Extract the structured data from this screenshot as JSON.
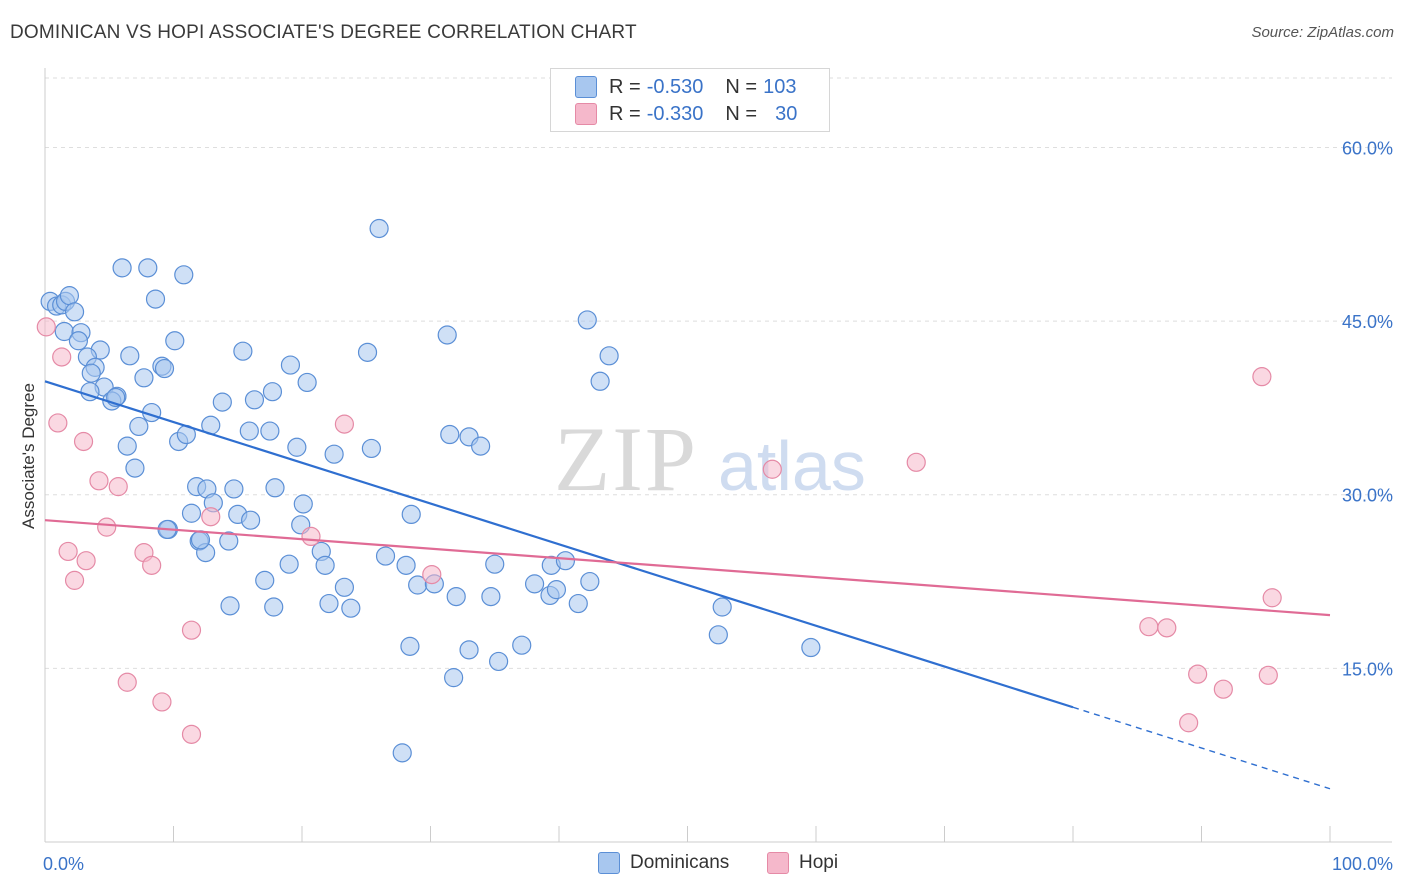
{
  "header": {
    "title": "DOMINICAN VS HOPI ASSOCIATE'S DEGREE CORRELATION CHART",
    "source": "Source: ZipAtlas.com"
  },
  "watermark": {
    "zip": "ZIP",
    "atlas": "atlas"
  },
  "legend_top": {
    "rows": [
      {
        "r_label": "R =",
        "r_value": "-0.530",
        "n_label": "N =",
        "n_value": "103",
        "color": "#a8c7ef"
      },
      {
        "r_label": "R =",
        "r_value": "-0.330",
        "n_label": "N =",
        "n_value": "30",
        "color": "#f5b8cb"
      }
    ]
  },
  "legend_bottom": {
    "items": [
      {
        "label": "Dominicans",
        "color": "#a8c7ef"
      },
      {
        "label": "Hopi",
        "color": "#f5b8cb"
      }
    ]
  },
  "colors": {
    "blue_fill": "#a8c7ef",
    "blue_stroke": "#5b8fd6",
    "blue_line": "#2f6fd0",
    "pink_fill": "#f5b8cb",
    "pink_stroke": "#e58aa6",
    "pink_line": "#e06b95",
    "tick_label": "#3a73c8",
    "grid": "#dedede"
  },
  "chart_data": {
    "type": "scatter",
    "title": "DOMINICAN VS HOPI ASSOCIATE'S DEGREE CORRELATION CHART",
    "xlabel": "",
    "ylabel": "Associate's Degree",
    "xlim": [
      0,
      100
    ],
    "ylim": [
      0,
      66
    ],
    "x_tick_labels": [
      "0.0%",
      "100.0%"
    ],
    "y_ticks": [
      15,
      30,
      45,
      60
    ],
    "y_tick_labels": [
      "15.0%",
      "30.0%",
      "45.0%",
      "60.0%"
    ],
    "grid": true,
    "series": [
      {
        "name": "Dominicans",
        "points": [
          [
            0.4,
            46.7
          ],
          [
            0.9,
            46.3
          ],
          [
            1.3,
            46.4
          ],
          [
            1.6,
            46.7
          ],
          [
            1.9,
            47.2
          ],
          [
            2.3,
            45.8
          ],
          [
            1.5,
            44.1
          ],
          [
            2.8,
            44.0
          ],
          [
            2.6,
            43.3
          ],
          [
            4.3,
            42.5
          ],
          [
            3.3,
            41.9
          ],
          [
            3.9,
            41.0
          ],
          [
            3.6,
            40.5
          ],
          [
            4.6,
            39.3
          ],
          [
            5.6,
            38.5
          ],
          [
            5.2,
            38.1
          ],
          [
            6.6,
            42.0
          ],
          [
            7.7,
            40.1
          ],
          [
            9.1,
            41.1
          ],
          [
            9.3,
            40.9
          ],
          [
            10.1,
            43.3
          ],
          [
            6.0,
            49.6
          ],
          [
            8.0,
            49.6
          ],
          [
            8.6,
            46.9
          ],
          [
            10.8,
            49.0
          ],
          [
            13.8,
            38.0
          ],
          [
            15.4,
            42.4
          ],
          [
            16.3,
            38.2
          ],
          [
            17.7,
            38.9
          ],
          [
            19.1,
            41.2
          ],
          [
            20.4,
            39.7
          ],
          [
            8.3,
            37.1
          ],
          [
            7.3,
            35.9
          ],
          [
            10.4,
            34.6
          ],
          [
            11.0,
            35.2
          ],
          [
            12.9,
            36.0
          ],
          [
            15.9,
            35.5
          ],
          [
            17.5,
            35.5
          ],
          [
            19.6,
            34.1
          ],
          [
            22.5,
            33.5
          ],
          [
            25.4,
            34.0
          ],
          [
            31.3,
            43.8
          ],
          [
            25.1,
            42.3
          ],
          [
            26.0,
            53.0
          ],
          [
            42.2,
            45.1
          ],
          [
            43.9,
            42.0
          ],
          [
            43.2,
            39.8
          ],
          [
            31.5,
            35.2
          ],
          [
            33.0,
            35.0
          ],
          [
            33.9,
            34.2
          ],
          [
            6.4,
            34.2
          ],
          [
            7.0,
            32.3
          ],
          [
            11.8,
            30.7
          ],
          [
            12.6,
            30.5
          ],
          [
            14.7,
            30.5
          ],
          [
            17.9,
            30.6
          ],
          [
            20.1,
            29.2
          ],
          [
            9.6,
            27.0
          ],
          [
            11.4,
            28.4
          ],
          [
            13.1,
            29.3
          ],
          [
            15.0,
            28.3
          ],
          [
            16.0,
            27.8
          ],
          [
            19.9,
            27.4
          ],
          [
            28.5,
            28.3
          ],
          [
            12.0,
            26.0
          ],
          [
            12.5,
            25.0
          ],
          [
            14.3,
            26.0
          ],
          [
            21.5,
            25.1
          ],
          [
            21.8,
            23.9
          ],
          [
            17.1,
            22.6
          ],
          [
            19.0,
            24.0
          ],
          [
            26.5,
            24.7
          ],
          [
            28.1,
            23.9
          ],
          [
            29.0,
            22.2
          ],
          [
            30.3,
            22.3
          ],
          [
            35.0,
            24.0
          ],
          [
            39.4,
            23.9
          ],
          [
            40.5,
            24.3
          ],
          [
            38.1,
            22.3
          ],
          [
            39.3,
            21.3
          ],
          [
            39.8,
            21.8
          ],
          [
            42.4,
            22.5
          ],
          [
            23.3,
            22.0
          ],
          [
            22.1,
            20.6
          ],
          [
            23.8,
            20.2
          ],
          [
            14.4,
            20.4
          ],
          [
            17.8,
            20.3
          ],
          [
            32.0,
            21.2
          ],
          [
            34.7,
            21.2
          ],
          [
            41.5,
            20.6
          ],
          [
            52.7,
            20.3
          ],
          [
            52.4,
            17.9
          ],
          [
            59.6,
            16.8
          ],
          [
            28.4,
            16.9
          ],
          [
            33.0,
            16.6
          ],
          [
            37.1,
            17.0
          ],
          [
            35.3,
            15.6
          ],
          [
            31.8,
            14.2
          ],
          [
            27.8,
            7.7
          ],
          [
            9.5,
            27.0
          ],
          [
            5.5,
            38.4
          ],
          [
            3.5,
            38.9
          ],
          [
            12.1,
            26.1
          ]
        ]
      },
      {
        "name": "Hopi",
        "points": [
          [
            0.1,
            44.5
          ],
          [
            1.3,
            41.9
          ],
          [
            1.0,
            36.2
          ],
          [
            3.0,
            34.6
          ],
          [
            4.2,
            31.2
          ],
          [
            5.7,
            30.7
          ],
          [
            4.8,
            27.2
          ],
          [
            1.8,
            25.1
          ],
          [
            3.2,
            24.3
          ],
          [
            2.3,
            22.6
          ],
          [
            7.7,
            25.0
          ],
          [
            8.3,
            23.9
          ],
          [
            12.9,
            28.1
          ],
          [
            20.7,
            26.4
          ],
          [
            23.3,
            36.1
          ],
          [
            30.1,
            23.1
          ],
          [
            56.6,
            32.2
          ],
          [
            67.8,
            32.8
          ],
          [
            94.7,
            40.2
          ],
          [
            95.5,
            21.1
          ],
          [
            85.9,
            18.6
          ],
          [
            87.3,
            18.5
          ],
          [
            89.7,
            14.5
          ],
          [
            95.2,
            14.4
          ],
          [
            89.0,
            10.3
          ],
          [
            91.7,
            13.2
          ],
          [
            6.4,
            13.8
          ],
          [
            11.4,
            18.3
          ],
          [
            9.1,
            12.1
          ],
          [
            11.4,
            9.3
          ]
        ]
      }
    ],
    "trend_lines": [
      {
        "series": "Dominicans",
        "x": [
          0,
          100
        ],
        "y": [
          39.8,
          4.6
        ],
        "solid_until_x": 80
      },
      {
        "series": "Hopi",
        "x": [
          0,
          100
        ],
        "y": [
          27.8,
          19.6
        ]
      }
    ]
  }
}
